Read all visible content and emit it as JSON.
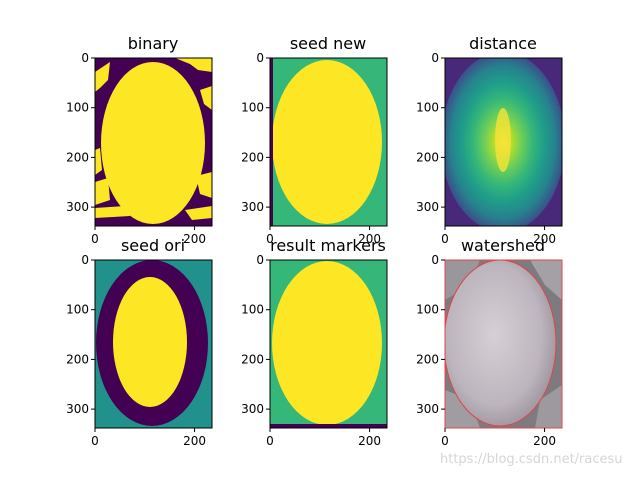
{
  "figure": {
    "watermark": "https://blog.csdn.net/racesu"
  },
  "panels": [
    {
      "title": "binary",
      "yticks": [
        "0",
        "100",
        "200",
        "300"
      ],
      "xticks": [
        "0",
        "200"
      ]
    },
    {
      "title": "seed new",
      "yticks": [
        "0",
        "100",
        "200",
        "300"
      ],
      "xticks": [
        "0",
        "200"
      ]
    },
    {
      "title": "distance",
      "yticks": [
        "0",
        "100",
        "200",
        "300"
      ],
      "xticks": [
        "0",
        "200"
      ]
    },
    {
      "title": "seed ori",
      "yticks": [
        "0",
        "100",
        "200",
        "300"
      ],
      "xticks": [
        "0",
        "200"
      ]
    },
    {
      "title": "result markers",
      "yticks": [
        "0",
        "100",
        "200",
        "300"
      ],
      "xticks": [
        "0",
        "200"
      ]
    },
    {
      "title": "watershed",
      "yticks": [
        "0",
        "100",
        "200",
        "300"
      ],
      "xticks": [
        "0",
        "200"
      ]
    }
  ],
  "colors": {
    "viridis_dark": "#440154",
    "viridis_teal": "#21918c",
    "viridis_green": "#35b779",
    "viridis_yellow": "#fde725",
    "watershed_line": "#e0454a"
  }
}
